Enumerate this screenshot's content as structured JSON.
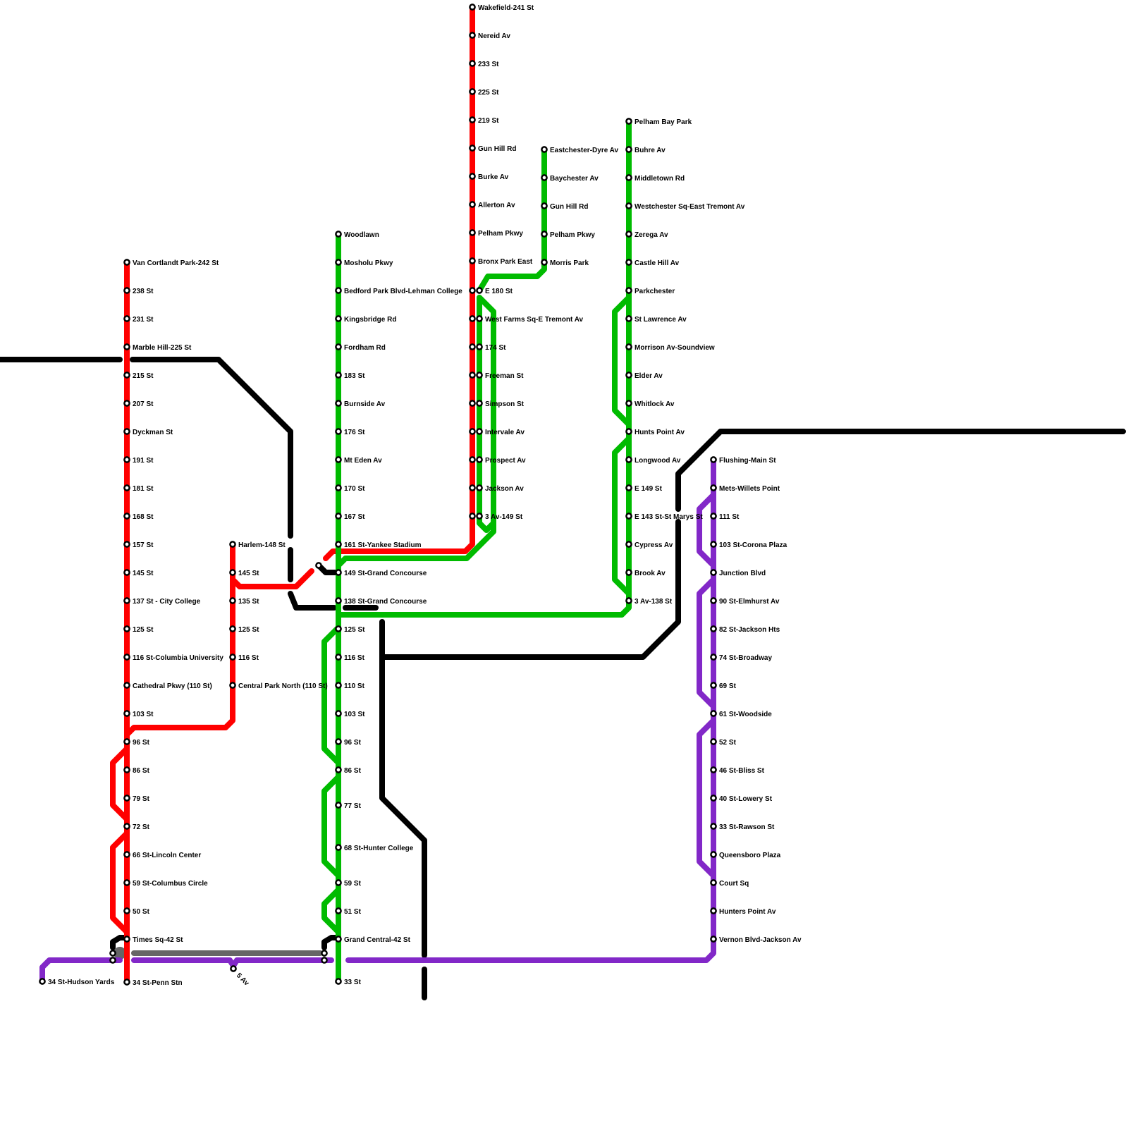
{
  "colors": {
    "red": "#ff0000",
    "green": "#00bb00",
    "purple": "#8228c8",
    "black": "#000000",
    "gray": "#666666"
  },
  "lines": {
    "red": [
      "Van Cortlandt Park-242 St",
      "238 St",
      "231 St",
      "Marble Hill-225 St",
      "215 St",
      "207 St",
      "Dyckman St",
      "191 St",
      "181 St",
      "168 St",
      "157 St",
      "145 St",
      "137 St - City College",
      "125 St",
      "116 St-Columbia University",
      "Cathedral Pkwy (110 St)",
      "103 St",
      "96 St",
      "86 St",
      "79 St",
      "72 St",
      "66 St-Lincoln Center",
      "59 St-Columbus Circle",
      "50 St",
      "Times Sq-42 St",
      "34 St-Penn Stn"
    ],
    "red_branch_harlem": [
      "Harlem-148 St",
      "145 St",
      "135 St",
      "125 St",
      "116 St",
      "Central Park North (110 St)"
    ],
    "red_branch_white_plains": [
      "Wakefield-241 St",
      "Nereid Av",
      "233 St",
      "225 St",
      "219 St",
      "Gun Hill Rd",
      "Burke Av",
      "Allerton Av",
      "Pelham Pkwy",
      "Bronx Park East"
    ],
    "green_lexington": [
      "Woodlawn",
      "Mosholu Pkwy",
      "Bedford Park Blvd-Lehman College",
      "Kingsbridge Rd",
      "Fordham Rd",
      "183 St",
      "Burnside Av",
      "176 St",
      "Mt Eden Av",
      "170 St",
      "167 St",
      "161 St-Yankee Stadium",
      "149 St-Grand Concourse",
      "138 St-Grand Concourse",
      "125 St",
      "116 St",
      "110 St",
      "103 St",
      "96 St",
      "86 St",
      "77 St",
      "68 St-Hunter College",
      "59 St",
      "51 St",
      "Grand Central-42 St",
      "33 St"
    ],
    "green_white_plains": [
      "E 180 St",
      "West Farms Sq-E Tremont Av",
      "174 St",
      "Freeman St",
      "Simpson St",
      "Intervale Av",
      "Prospect Av",
      "Jackson Av",
      "3 Av-149 St"
    ],
    "green_dyre": [
      "Eastchester-Dyre Av",
      "Baychester Av",
      "Gun Hill Rd",
      "Pelham Pkwy",
      "Morris Park"
    ],
    "green_pelham": [
      "Pelham Bay Park",
      "Buhre Av",
      "Middletown Rd",
      "Westchester Sq-East Tremont Av",
      "Zerega Av",
      "Castle Hill Av",
      "Parkchester",
      "St Lawrence Av",
      "Morrison Av-Soundview",
      "Elder Av",
      "Whitlock Av",
      "Hunts Point Av",
      "Longwood Av",
      "E 149 St",
      "E 143 St-St Marys St",
      "Cypress Av",
      "Brook Av",
      "3 Av-138 St"
    ],
    "purple_flushing": [
      "Flushing-Main St",
      "Mets-Willets Point",
      "111 St",
      "103 St-Corona Plaza",
      "Junction Blvd",
      "90 St-Elmhurst Av",
      "82 St-Jackson Hts",
      "74 St-Broadway",
      "69 St",
      "61 St-Woodside",
      "52 St",
      "46 St-Bliss St",
      "40 St-Lowery St",
      "33 St-Rawson St",
      "Queensboro Plaza",
      "Court Sq",
      "Hunters Point Av",
      "Vernon Blvd-Jackson Av"
    ],
    "purple_west": [
      "34 St-Hudson Yards",
      "5 Av"
    ]
  }
}
